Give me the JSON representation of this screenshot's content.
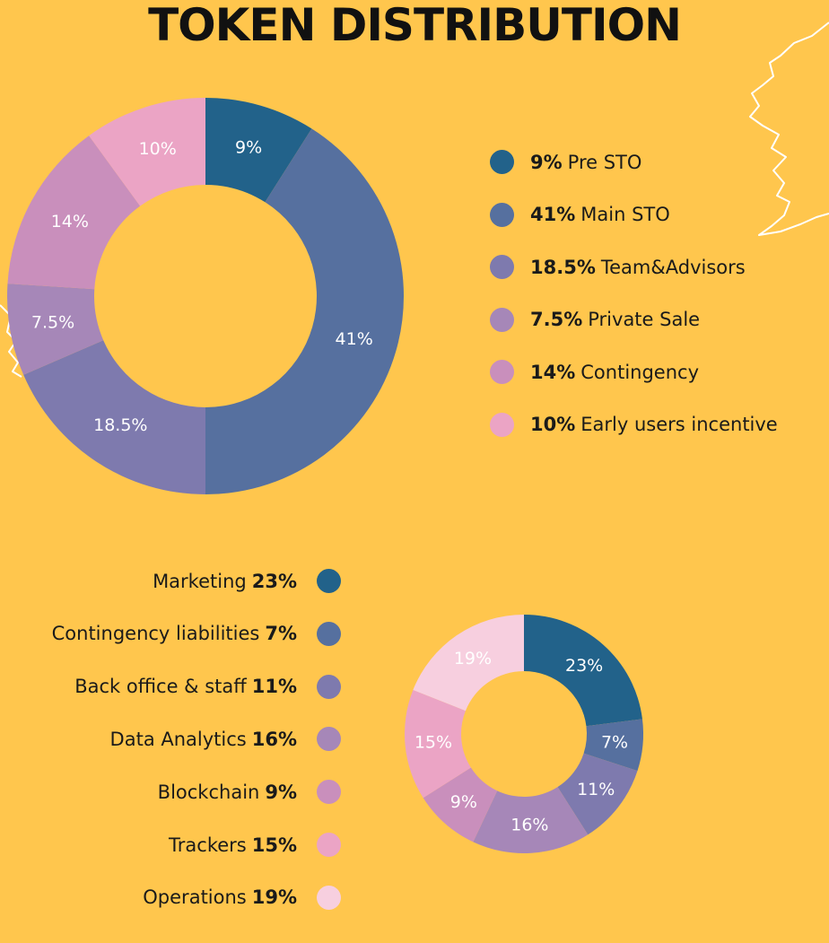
{
  "title": "TOKEN DISTRIBUTION",
  "chart_data": [
    {
      "type": "pie",
      "style": "donut",
      "categories": [
        "Pre STO",
        "Main STO",
        "Team&Advisors",
        "Private Sale",
        "Contingency",
        "Early users incentive"
      ],
      "values": [
        9,
        41,
        18.5,
        7.5,
        14,
        10
      ],
      "labels": [
        "9%",
        "41%",
        "18.5%",
        "7.5%",
        "14%",
        "10%"
      ],
      "colors": [
        "#22628A",
        "#56709F",
        "#7E7AAE",
        "#A687B8",
        "#C98FBC",
        "#EBA4C5"
      ],
      "legend_placement": "right"
    },
    {
      "type": "pie",
      "style": "donut",
      "categories": [
        "Marketing",
        "Contingency liabilities",
        "Back office & staff",
        "Data Analytics",
        "Blockchain",
        "Trackers",
        "Operations"
      ],
      "values": [
        23,
        7,
        11,
        16,
        9,
        15,
        19
      ],
      "labels": [
        "23%",
        "7%",
        "11%",
        "16%",
        "9%",
        "15%",
        "19%"
      ],
      "colors": [
        "#22628A",
        "#56709F",
        "#7E7AAE",
        "#A687B8",
        "#C98FBC",
        "#EBA4C5",
        "#F7CFDF"
      ],
      "legend_placement": "left"
    }
  ],
  "legend1": [
    {
      "pct": "9%",
      "name": "Pre STO"
    },
    {
      "pct": "41%",
      "name": "Main STO"
    },
    {
      "pct": "18.5%",
      "name": "Team&Advisors"
    },
    {
      "pct": "7.5%",
      "name": "Private Sale"
    },
    {
      "pct": "14%",
      "name": "Contingency"
    },
    {
      "pct": "10%",
      "name": "Early users incentive"
    }
  ],
  "legend2": [
    {
      "name": "Marketing",
      "pct": "23%"
    },
    {
      "name": "Contingency liabilities",
      "pct": "7%"
    },
    {
      "name": "Back office & staff",
      "pct": "11%"
    },
    {
      "name": "Data Analytics",
      "pct": "16%"
    },
    {
      "name": "Blockchain",
      "pct": "9%"
    },
    {
      "name": "Trackers",
      "pct": "15%"
    },
    {
      "name": "Operations",
      "pct": "19%"
    }
  ]
}
